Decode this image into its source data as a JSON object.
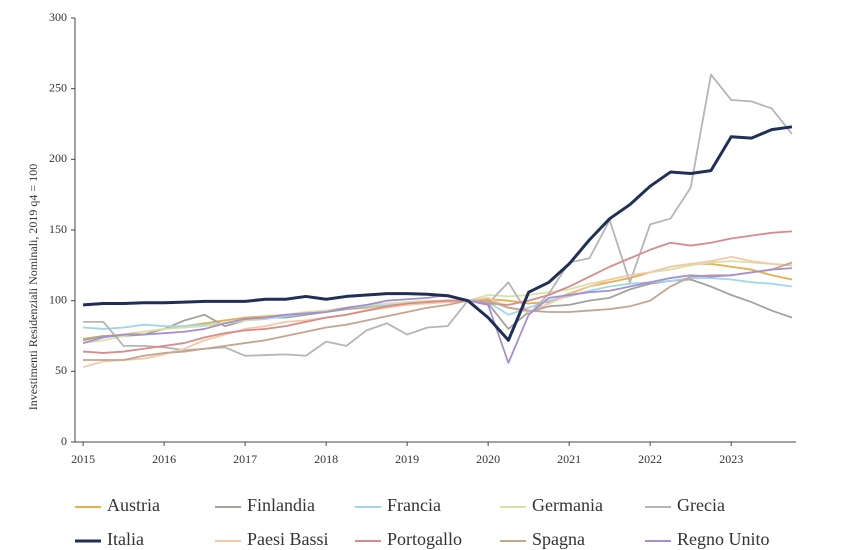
{
  "chart_data": {
    "type": "line",
    "y_label": "Investimenti Residenziali Nominali, 2019 q4 = 100",
    "x": [
      2015,
      2015.25,
      2015.5,
      2015.75,
      2016,
      2016.25,
      2016.5,
      2016.75,
      2017,
      2017.25,
      2017.5,
      2017.75,
      2018,
      2018.25,
      2018.5,
      2018.75,
      2019,
      2019.25,
      2019.5,
      2019.75,
      2020,
      2020.25,
      2020.5,
      2020.75,
      2021,
      2021.25,
      2021.5,
      2021.75,
      2022,
      2022.25,
      2022.5,
      2022.75,
      2023,
      2023.25,
      2023.5,
      2023.75
    ],
    "xlim": [
      2014.9,
      2023.8
    ],
    "xticks": [
      2015,
      2016,
      2017,
      2018,
      2019,
      2020,
      2021,
      2022,
      2023
    ],
    "ylim": [
      0,
      300
    ],
    "yticks": [
      0,
      50,
      100,
      150,
      200,
      250,
      300
    ],
    "grid": false,
    "legend": "bottom",
    "series": [
      {
        "name": "Austria",
        "color": "#e3b04b",
        "values": [
          73,
          75,
          76,
          78,
          80,
          82,
          84,
          86,
          88,
          89,
          90,
          91,
          92,
          94,
          95,
          97,
          98,
          99,
          99,
          100,
          101,
          100,
          98,
          99,
          105,
          110,
          113,
          116,
          120,
          124,
          126,
          126,
          124,
          122,
          118,
          115
        ]
      },
      {
        "name": "Finlandia",
        "color": "#a3a39c",
        "values": [
          72,
          75,
          75,
          76,
          80,
          86,
          90,
          82,
          86,
          88,
          88,
          90,
          92,
          94,
          96,
          98,
          98,
          99,
          100,
          100,
          98,
          80,
          92,
          96,
          97,
          100,
          102,
          108,
          112,
          114,
          115,
          110,
          104,
          99,
          93,
          88
        ]
      },
      {
        "name": "Francia",
        "color": "#9fd6ee",
        "values": [
          81,
          80,
          81,
          83,
          82,
          82,
          83,
          84,
          86,
          87,
          89,
          91,
          93,
          95,
          96,
          97,
          98,
          99,
          99,
          100,
          99,
          90,
          95,
          100,
          103,
          107,
          110,
          112,
          113,
          114,
          116,
          116,
          115,
          113,
          112,
          110
        ]
      },
      {
        "name": "Germania",
        "color": "#d9e2a6",
        "values": [
          70,
          72,
          75,
          78,
          80,
          81,
          82,
          84,
          86,
          88,
          90,
          92,
          93,
          95,
          97,
          98,
          99,
          100,
          100,
          100,
          104,
          103,
          104,
          106,
          108,
          112,
          115,
          118,
          120,
          122,
          125,
          127,
          128,
          127,
          126,
          125
        ]
      },
      {
        "name": "Grecia",
        "color": "#b5b5b5",
        "values": [
          85,
          85,
          68,
          68,
          67,
          65,
          66,
          67,
          61,
          61.5,
          62,
          61,
          71,
          68,
          79,
          84,
          76,
          81,
          82,
          100,
          98,
          113,
          90,
          105,
          127,
          130,
          157,
          113,
          154,
          158,
          180,
          260,
          242,
          241,
          236,
          218
        ]
      },
      {
        "name": "Italia",
        "color": "#1f2f57",
        "values": [
          97,
          98,
          98,
          98.5,
          98.5,
          99,
          99.5,
          99.5,
          99.5,
          101,
          101,
          103,
          101,
          103,
          104,
          105,
          105,
          104.5,
          103.5,
          100,
          88,
          72,
          106,
          113,
          126,
          143,
          158,
          168,
          181,
          191,
          190,
          192,
          216,
          215,
          221,
          223
        ]
      },
      {
        "name": "Paesi Bassi",
        "color": "#f5c8a8",
        "values": [
          53,
          57,
          58,
          59,
          62,
          66,
          72,
          76,
          80,
          82,
          85,
          86,
          88,
          90,
          93,
          95,
          97,
          98,
          99,
          100,
          102,
          95,
          92,
          98,
          104,
          110,
          115,
          118,
          120,
          124,
          126,
          128,
          131,
          128,
          126,
          125
        ]
      },
      {
        "name": "Portogallo",
        "color": "#d98b8b",
        "values": [
          64,
          63,
          64,
          66,
          68,
          70,
          74,
          77,
          79,
          80,
          82,
          85,
          88,
          90,
          93,
          96,
          98,
          99,
          100,
          100,
          98,
          97,
          100,
          104,
          110,
          117,
          124,
          130,
          136,
          141,
          139,
          141,
          144,
          146,
          148,
          149
        ]
      },
      {
        "name": "Spagna",
        "color": "#c4a590",
        "values": [
          58,
          58,
          58,
          61,
          63,
          64,
          66,
          68,
          70,
          72,
          75,
          78,
          81,
          83,
          86,
          89,
          92,
          95,
          97,
          100,
          100,
          95,
          93,
          92,
          92,
          93,
          94,
          96,
          100,
          110,
          117,
          118,
          118,
          120,
          122,
          127
        ]
      },
      {
        "name": "Regno Unito",
        "color": "#a58fd0",
        "values": [
          70,
          74,
          76,
          76,
          77,
          78,
          80,
          84,
          87,
          88,
          90,
          91,
          92,
          95,
          97,
          100,
          101,
          102,
          104,
          100,
          97,
          56,
          90,
          102,
          104,
          106,
          107,
          110,
          113,
          116,
          118,
          117,
          118,
          120,
          122,
          123
        ]
      }
    ]
  }
}
